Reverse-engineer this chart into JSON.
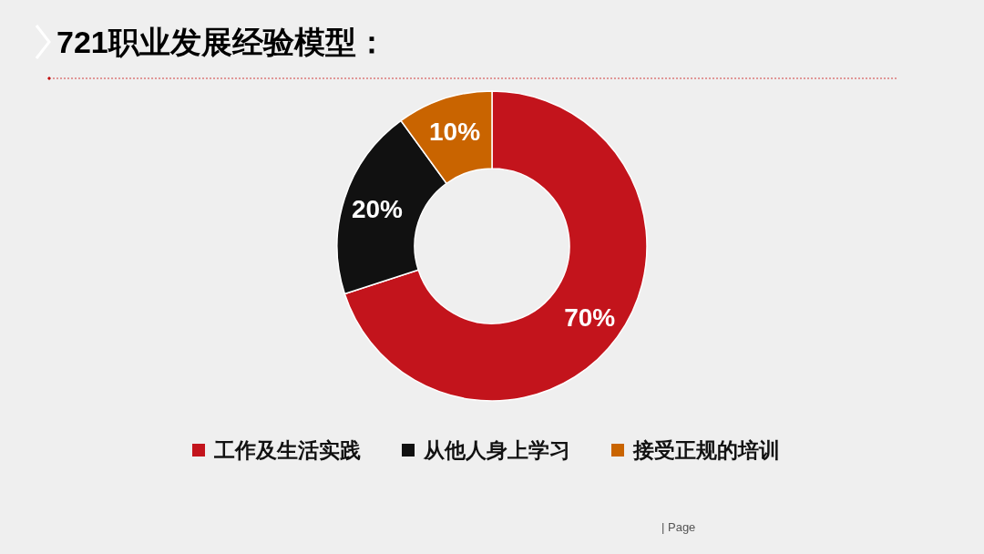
{
  "chart_data": {
    "type": "donut",
    "title": "721职业发展经验模型：",
    "categories": [
      "工作及生活实践",
      "从他人身上学习",
      "接受正规的培训"
    ],
    "values": [
      70,
      20,
      10
    ],
    "colors": [
      "#c3141c",
      "#111111",
      "#c96400"
    ],
    "value_labels": [
      "70%",
      "20%",
      "10%"
    ],
    "legend": "bottom",
    "annotations": [
      "| Page"
    ]
  }
}
